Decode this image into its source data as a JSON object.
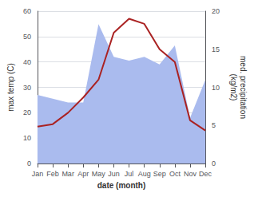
{
  "chart_data": {
    "type": "line",
    "categories": [
      "Jan",
      "Feb",
      "Mar",
      "Apr",
      "May",
      "Jun",
      "Jul",
      "Aug",
      "Sep",
      "Oct",
      "Nov",
      "Dec"
    ],
    "series": [
      {
        "type": "area",
        "color": "#aabbee",
        "axis": "y2",
        "values": [
          9.0,
          8.5,
          8.0,
          8.0,
          18.3,
          14.0,
          13.5,
          14.0,
          13.0,
          15.5,
          6.0,
          11.0
        ]
      },
      {
        "type": "line",
        "color": "#aa2222",
        "values": [
          14.5,
          15.5,
          20.0,
          26.0,
          33.0,
          51.5,
          57.0,
          55.0,
          45.0,
          40.0,
          17.0,
          13.0
        ]
      }
    ],
    "xlabel": "date (month)",
    "ylabel": "max temp (C)",
    "y2label": "med. precipitation\n(kg/m2)",
    "ylim": [
      0,
      60
    ],
    "yticks": [
      0,
      10,
      20,
      30,
      40,
      50,
      60
    ],
    "y2lim": [
      0,
      20
    ],
    "y2ticks": [
      0,
      5,
      10,
      15,
      20
    ],
    "grid": true
  }
}
